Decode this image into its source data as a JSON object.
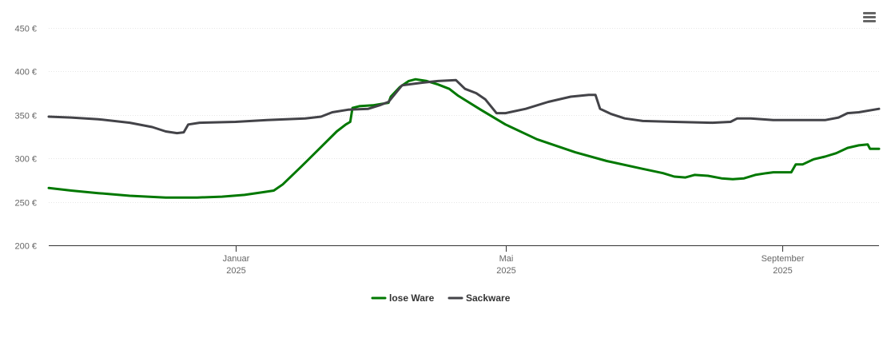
{
  "menu": {
    "icon": "hamburger-menu-icon"
  },
  "chart_data": {
    "type": "line",
    "title": "",
    "xlabel": "",
    "ylabel": "",
    "ylim": [
      200,
      450
    ],
    "y_ticks": [
      200,
      250,
      300,
      350,
      400,
      450
    ],
    "y_tick_labels": [
      "200 €",
      "250 €",
      "300 €",
      "350 €",
      "400 €",
      "450 €"
    ],
    "xlim": [
      "2024-10-10",
      "2025-10-14"
    ],
    "x_ticks": [
      {
        "date": "2025-01-01",
        "month": "Januar",
        "year": "2025"
      },
      {
        "date": "2025-05-01",
        "month": "Mai",
        "year": "2025"
      },
      {
        "date": "2025-09-01",
        "month": "September",
        "year": "2025"
      }
    ],
    "grid": true,
    "legend_position": "bottom-center",
    "series": [
      {
        "name": "lose Ware",
        "color": "#007800",
        "points": [
          [
            "2024-10-10",
            266
          ],
          [
            "2024-10-20",
            263
          ],
          [
            "2024-11-01",
            260
          ],
          [
            "2024-11-15",
            257
          ],
          [
            "2024-12-01",
            255
          ],
          [
            "2024-12-15",
            255
          ],
          [
            "2024-12-26",
            256
          ],
          [
            "2025-01-05",
            258
          ],
          [
            "2025-01-13",
            261
          ],
          [
            "2025-01-18",
            263
          ],
          [
            "2025-01-22",
            270
          ],
          [
            "2025-01-30",
            290
          ],
          [
            "2025-02-08",
            313
          ],
          [
            "2025-02-15",
            331
          ],
          [
            "2025-02-19",
            339
          ],
          [
            "2025-02-21",
            342
          ],
          [
            "2025-02-22",
            358
          ],
          [
            "2025-02-25",
            360
          ],
          [
            "2025-03-03",
            361
          ],
          [
            "2025-03-10",
            364
          ],
          [
            "2025-03-11",
            371
          ],
          [
            "2025-03-15",
            382
          ],
          [
            "2025-03-19",
            389
          ],
          [
            "2025-03-22",
            391
          ],
          [
            "2025-03-27",
            389
          ],
          [
            "2025-04-01",
            385
          ],
          [
            "2025-04-06",
            380
          ],
          [
            "2025-04-10",
            372
          ],
          [
            "2025-04-20",
            356
          ],
          [
            "2025-05-01",
            339
          ],
          [
            "2025-05-15",
            322
          ],
          [
            "2025-06-01",
            307
          ],
          [
            "2025-06-15",
            297
          ],
          [
            "2025-07-01",
            288
          ],
          [
            "2025-07-10",
            283
          ],
          [
            "2025-07-15",
            279
          ],
          [
            "2025-07-20",
            278
          ],
          [
            "2025-07-24",
            281
          ],
          [
            "2025-07-30",
            280
          ],
          [
            "2025-08-05",
            277
          ],
          [
            "2025-08-10",
            276
          ],
          [
            "2025-08-15",
            277
          ],
          [
            "2025-08-20",
            281
          ],
          [
            "2025-08-25",
            283
          ],
          [
            "2025-08-28",
            284
          ],
          [
            "2025-09-03",
            284
          ],
          [
            "2025-09-05",
            284
          ],
          [
            "2025-09-07",
            293
          ],
          [
            "2025-09-10",
            293
          ],
          [
            "2025-09-15",
            299
          ],
          [
            "2025-09-20",
            302
          ],
          [
            "2025-09-25",
            306
          ],
          [
            "2025-09-30",
            312
          ],
          [
            "2025-10-05",
            315
          ],
          [
            "2025-10-09",
            316
          ],
          [
            "2025-10-10",
            311
          ],
          [
            "2025-10-14",
            311
          ]
        ]
      },
      {
        "name": "Sackware",
        "color": "#434348",
        "points": [
          [
            "2024-10-10",
            348
          ],
          [
            "2024-10-20",
            347
          ],
          [
            "2024-11-01",
            345
          ],
          [
            "2024-11-15",
            341
          ],
          [
            "2024-11-25",
            336
          ],
          [
            "2024-12-01",
            331
          ],
          [
            "2024-12-06",
            329
          ],
          [
            "2024-12-09",
            330
          ],
          [
            "2024-12-11",
            339
          ],
          [
            "2024-12-16",
            341
          ],
          [
            "2025-01-01",
            342
          ],
          [
            "2025-01-15",
            344
          ],
          [
            "2025-02-01",
            346
          ],
          [
            "2025-02-08",
            348
          ],
          [
            "2025-02-13",
            353
          ],
          [
            "2025-02-20",
            356
          ],
          [
            "2025-03-01",
            357
          ],
          [
            "2025-03-06",
            361
          ],
          [
            "2025-03-10",
            365
          ],
          [
            "2025-03-16",
            384
          ],
          [
            "2025-03-25",
            387
          ],
          [
            "2025-04-01",
            389
          ],
          [
            "2025-04-09",
            390
          ],
          [
            "2025-04-13",
            380
          ],
          [
            "2025-04-18",
            375
          ],
          [
            "2025-04-22",
            368
          ],
          [
            "2025-04-27",
            352
          ],
          [
            "2025-05-01",
            352
          ],
          [
            "2025-05-10",
            357
          ],
          [
            "2025-05-20",
            365
          ],
          [
            "2025-05-30",
            371
          ],
          [
            "2025-06-07",
            373
          ],
          [
            "2025-06-10",
            373
          ],
          [
            "2025-06-12",
            357
          ],
          [
            "2025-06-17",
            351
          ],
          [
            "2025-06-23",
            346
          ],
          [
            "2025-07-01",
            343
          ],
          [
            "2025-07-15",
            342
          ],
          [
            "2025-08-01",
            341
          ],
          [
            "2025-08-09",
            342
          ],
          [
            "2025-08-12",
            346
          ],
          [
            "2025-08-18",
            346
          ],
          [
            "2025-08-28",
            344
          ],
          [
            "2025-09-10",
            344
          ],
          [
            "2025-09-20",
            344
          ],
          [
            "2025-09-26",
            347
          ],
          [
            "2025-09-30",
            352
          ],
          [
            "2025-10-05",
            353
          ],
          [
            "2025-10-14",
            357
          ]
        ]
      }
    ]
  }
}
